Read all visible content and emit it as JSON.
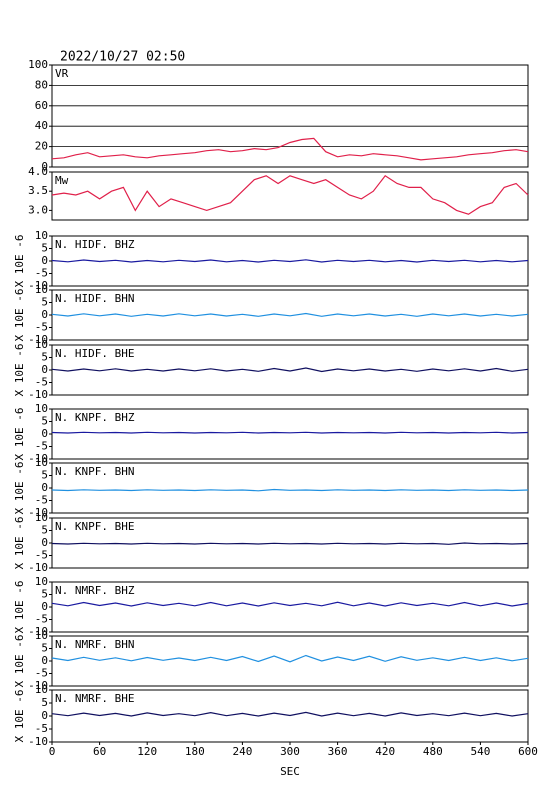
{
  "chart_data": [
    {
      "type": "line",
      "title": "2022/10/27 02:50",
      "x": [
        0,
        15,
        30,
        45,
        60,
        75,
        90,
        105,
        120,
        135,
        150,
        165,
        180,
        195,
        210,
        225,
        240,
        255,
        270,
        285,
        300,
        315,
        330,
        345,
        360,
        375,
        390,
        405,
        420,
        435,
        450,
        465,
        480,
        495,
        510,
        525,
        540,
        555,
        570,
        585,
        600
      ],
      "xlim": [
        0,
        600
      ],
      "ylim": [
        0,
        100
      ],
      "yticks": [
        0,
        20,
        40,
        60,
        80,
        100
      ],
      "grid": true,
      "series": [
        {
          "name": "VR",
          "color": "#e0204a",
          "values": [
            8,
            9,
            12,
            14,
            10,
            11,
            12,
            10,
            9,
            11,
            12,
            13,
            14,
            16,
            17,
            15,
            16,
            18,
            17,
            19,
            24,
            27,
            28,
            15,
            10,
            12,
            11,
            13,
            12,
            11,
            9,
            7,
            8,
            9,
            10,
            12,
            13,
            14,
            16,
            17,
            15
          ]
        }
      ]
    },
    {
      "type": "line",
      "x": [
        0,
        15,
        30,
        45,
        60,
        75,
        90,
        105,
        120,
        135,
        150,
        165,
        180,
        195,
        210,
        225,
        240,
        255,
        270,
        285,
        300,
        315,
        330,
        345,
        360,
        375,
        390,
        405,
        420,
        435,
        450,
        465,
        480,
        495,
        510,
        525,
        540,
        555,
        570,
        585,
        600
      ],
      "xlim": [
        0,
        600
      ],
      "ylim": [
        2.75,
        4
      ],
      "yticks": [
        {
          "value": 3,
          "label": "3.0"
        },
        3.5,
        {
          "value": 4,
          "label": "4.0"
        }
      ],
      "grid": false,
      "series": [
        {
          "name": "Mw",
          "color": "#e0204a",
          "values": [
            3.4,
            3.45,
            3.4,
            3.5,
            3.3,
            3.5,
            3.6,
            3.0,
            3.5,
            3.1,
            3.3,
            3.2,
            3.1,
            3.0,
            3.1,
            3.2,
            3.5,
            3.8,
            3.9,
            3.7,
            3.9,
            3.8,
            3.7,
            3.8,
            3.6,
            3.4,
            3.3,
            3.5,
            3.9,
            3.7,
            3.6,
            3.6,
            3.3,
            3.2,
            3.0,
            2.9,
            3.1,
            3.2,
            3.6,
            3.7,
            3.4
          ]
        }
      ]
    },
    {
      "type": "multi-panel",
      "x": [
        0,
        20,
        40,
        60,
        80,
        100,
        120,
        140,
        160,
        180,
        200,
        220,
        240,
        260,
        280,
        300,
        320,
        340,
        360,
        380,
        400,
        420,
        440,
        460,
        480,
        500,
        520,
        540,
        560,
        580,
        600
      ],
      "xlim": [
        0,
        600
      ],
      "xticks": [
        0,
        60,
        120,
        180,
        240,
        300,
        360,
        420,
        480,
        540,
        600
      ],
      "xlabel": "SEC",
      "ylim": [
        -10,
        10
      ],
      "yticks": [
        -10,
        -5,
        0,
        5,
        10
      ],
      "ylabel": "X 10E -6",
      "series": [
        {
          "name": "N. HIDF. BHZ",
          "color": "#1a1aa0",
          "values": [
            0.2,
            -0.3,
            0.4,
            -0.2,
            0.3,
            -0.4,
            0.2,
            -0.3,
            0.3,
            -0.2,
            0.4,
            -0.3,
            0.2,
            -0.4,
            0.3,
            -0.2,
            0.5,
            -0.4,
            0.3,
            -0.2,
            0.3,
            -0.3,
            0.2,
            -0.4,
            0.3,
            -0.2,
            0.3,
            -0.3,
            0.2,
            -0.3,
            0.2
          ]
        },
        {
          "name": "N. HIDF. BHN",
          "color": "#2090e0",
          "values": [
            0.3,
            -0.4,
            0.5,
            -0.3,
            0.4,
            -0.5,
            0.3,
            -0.4,
            0.5,
            -0.3,
            0.4,
            -0.4,
            0.3,
            -0.5,
            0.4,
            -0.3,
            0.6,
            -0.5,
            0.4,
            -0.3,
            0.4,
            -0.4,
            0.3,
            -0.5,
            0.4,
            -0.3,
            0.4,
            -0.4,
            0.3,
            -0.4,
            0.3
          ]
        },
        {
          "name": "N. HIDF. BHE",
          "color": "#101060",
          "values": [
            0.3,
            -0.4,
            0.4,
            -0.3,
            0.5,
            -0.4,
            0.3,
            -0.4,
            0.4,
            -0.3,
            0.5,
            -0.4,
            0.3,
            -0.5,
            0.6,
            -0.4,
            0.8,
            -0.6,
            0.4,
            -0.3,
            0.4,
            -0.4,
            0.3,
            -0.5,
            0.4,
            -0.3,
            0.5,
            -0.4,
            0.6,
            -0.5,
            0.3
          ]
        },
        {
          "name": "N. KNPF. BHZ",
          "color": "#1a1aa0",
          "values": [
            0.6,
            0.4,
            0.7,
            0.5,
            0.6,
            0.4,
            0.7,
            0.5,
            0.6,
            0.4,
            0.6,
            0.5,
            0.7,
            0.4,
            0.6,
            0.5,
            0.7,
            0.4,
            0.6,
            0.5,
            0.6,
            0.4,
            0.7,
            0.5,
            0.6,
            0.4,
            0.6,
            0.5,
            0.7,
            0.4,
            0.6
          ]
        },
        {
          "name": "N. KNPF. BHN",
          "color": "#2090e0",
          "values": [
            -0.8,
            -1.0,
            -0.7,
            -0.9,
            -0.8,
            -1.0,
            -0.7,
            -0.9,
            -0.8,
            -1.0,
            -0.7,
            -0.9,
            -0.8,
            -1.1,
            -0.6,
            -0.9,
            -0.8,
            -1.0,
            -0.7,
            -0.9,
            -0.8,
            -1.0,
            -0.7,
            -0.9,
            -0.8,
            -1.0,
            -0.7,
            -0.9,
            -0.8,
            -1.0,
            -0.8
          ]
        },
        {
          "name": "N. KNPF. BHE",
          "color": "#101060",
          "values": [
            -0.2,
            -0.4,
            -0.1,
            -0.3,
            -0.2,
            -0.4,
            -0.1,
            -0.3,
            -0.2,
            -0.4,
            -0.1,
            -0.3,
            -0.2,
            -0.4,
            -0.1,
            -0.3,
            -0.2,
            -0.4,
            -0.1,
            -0.3,
            -0.2,
            -0.4,
            -0.1,
            -0.3,
            -0.2,
            -0.5,
            0.0,
            -0.3,
            -0.2,
            -0.4,
            -0.2
          ]
        },
        {
          "name": "N. NMRF. BHZ",
          "color": "#1a1aa0",
          "values": [
            1.5,
            0.5,
            1.8,
            0.6,
            1.6,
            0.4,
            1.7,
            0.6,
            1.5,
            0.5,
            1.8,
            0.5,
            1.6,
            0.4,
            1.7,
            0.6,
            1.5,
            0.5,
            1.9,
            0.5,
            1.6,
            0.4,
            1.7,
            0.6,
            1.5,
            0.5,
            1.8,
            0.5,
            1.6,
            0.4,
            1.4
          ]
        },
        {
          "name": "N. NMRF. BHN",
          "color": "#2090e0",
          "values": [
            1.2,
            0.2,
            1.5,
            0.3,
            1.3,
            0.1,
            1.4,
            0.3,
            1.2,
            0.2,
            1.5,
            0.2,
            1.8,
            -0.2,
            2.0,
            -0.3,
            2.2,
            0.0,
            1.6,
            0.2,
            1.9,
            -0.1,
            1.7,
            0.3,
            1.3,
            0.2,
            1.5,
            0.2,
            1.3,
            0.1,
            1.1
          ]
        },
        {
          "name": "N. NMRF. BHE",
          "color": "#101060",
          "values": [
            0.9,
            0.1,
            1.1,
            0.2,
            1.0,
            0.0,
            1.2,
            0.2,
            0.9,
            0.1,
            1.3,
            0.1,
            1.0,
            0.0,
            1.1,
            0.2,
            1.4,
            0.0,
            1.1,
            0.1,
            1.0,
            0.0,
            1.2,
            0.2,
            0.9,
            0.1,
            1.1,
            0.1,
            1.0,
            0.0,
            0.9
          ]
        }
      ]
    }
  ]
}
